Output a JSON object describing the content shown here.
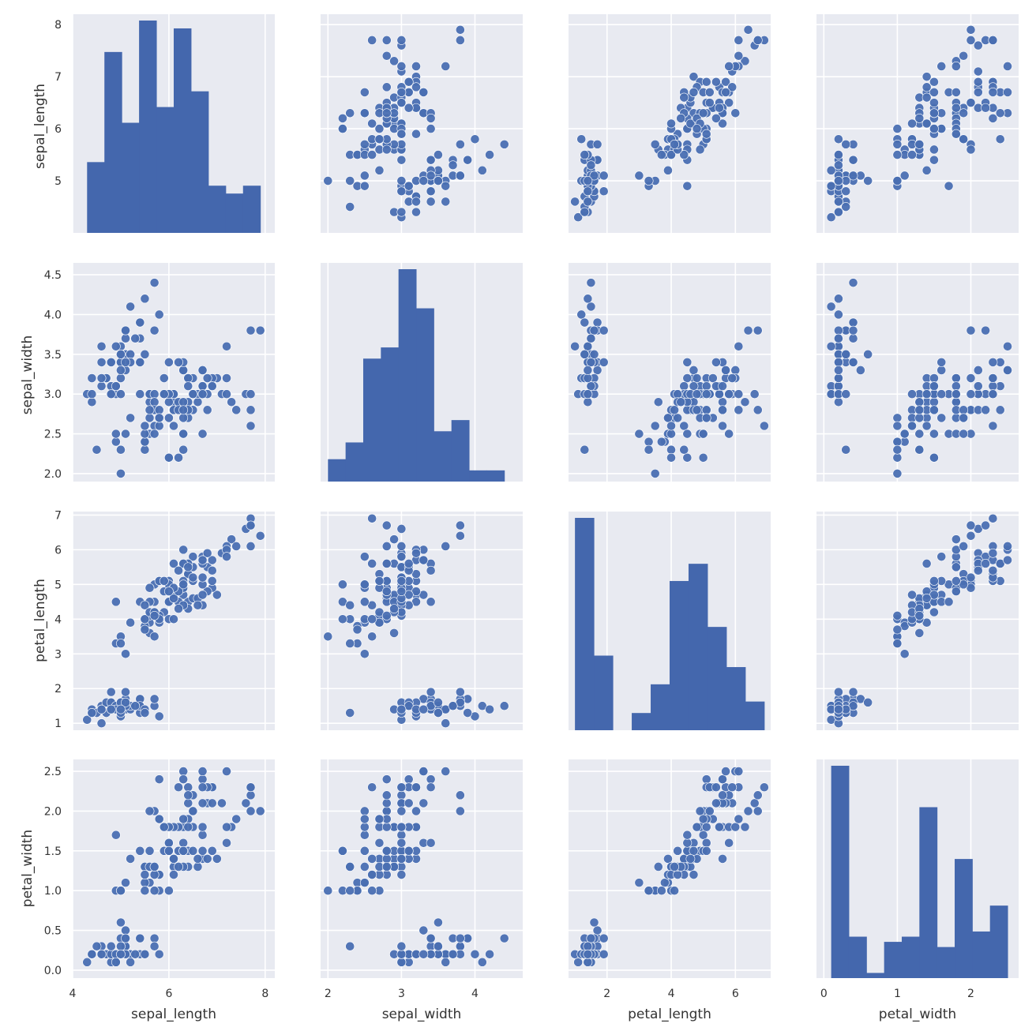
{
  "chart_data": {
    "type": "scatter",
    "title": "",
    "layout": "pairplot",
    "variables": [
      "sepal_length",
      "sepal_width",
      "petal_length",
      "petal_width"
    ],
    "axis_labels": [
      "sepal_length",
      "sepal_width",
      "petal_length",
      "petal_width"
    ],
    "ranges": [
      [
        4.0,
        8.2
      ],
      [
        1.9,
        4.65
      ],
      [
        0.8,
        7.1
      ],
      [
        -0.1,
        2.65
      ]
    ],
    "ticks": [
      [
        {
          "v": 5,
          "label": "5"
        },
        {
          "v": 6,
          "label": "6"
        },
        {
          "v": 7,
          "label": "7"
        },
        {
          "v": 8,
          "label": "8"
        }
      ],
      [
        {
          "v": 2.0,
          "label": "2.0"
        },
        {
          "v": 2.5,
          "label": "2.5"
        },
        {
          "v": 3.0,
          "label": "3.0"
        },
        {
          "v": 3.5,
          "label": "3.5"
        },
        {
          "v": 4.0,
          "label": "4.0"
        },
        {
          "v": 4.5,
          "label": "4.5"
        }
      ],
      [
        {
          "v": 1,
          "label": "1"
        },
        {
          "v": 2,
          "label": "2"
        },
        {
          "v": 3,
          "label": "3"
        },
        {
          "v": 4,
          "label": "4"
        },
        {
          "v": 5,
          "label": "5"
        },
        {
          "v": 6,
          "label": "6"
        },
        {
          "v": 7,
          "label": "7"
        }
      ],
      [
        {
          "v": 0.0,
          "label": "0.0"
        },
        {
          "v": 0.5,
          "label": "0.5"
        },
        {
          "v": 1.0,
          "label": "1.0"
        },
        {
          "v": 1.5,
          "label": "1.5"
        },
        {
          "v": 2.0,
          "label": "2.0"
        },
        {
          "v": 2.5,
          "label": "2.5"
        }
      ]
    ],
    "x_ticks": [
      [
        {
          "v": 4,
          "label": "4"
        },
        {
          "v": 6,
          "label": "6"
        },
        {
          "v": 8,
          "label": "8"
        }
      ],
      [
        {
          "v": 2,
          "label": "2"
        },
        {
          "v": 3,
          "label": "3"
        },
        {
          "v": 4,
          "label": "4"
        }
      ],
      [
        {
          "v": 2,
          "label": "2"
        },
        {
          "v": 4,
          "label": "4"
        },
        {
          "v": 6,
          "label": "6"
        }
      ],
      [
        {
          "v": 0,
          "label": "0"
        },
        {
          "v": 1,
          "label": "1"
        },
        {
          "v": 2,
          "label": "2"
        }
      ]
    ],
    "histograms": [
      {
        "variable": "sepal_length",
        "edges": [
          4.3,
          4.66,
          5.02,
          5.38,
          5.74,
          6.1,
          6.46,
          6.82,
          7.18,
          7.54,
          7.9
        ],
        "counts": [
          9,
          23,
          14,
          27,
          16,
          26,
          18,
          6,
          5,
          6
        ]
      },
      {
        "variable": "sepal_width",
        "edges": [
          2.0,
          2.24,
          2.48,
          2.72,
          2.96,
          3.2,
          3.44,
          3.68,
          3.92,
          4.16,
          4.4
        ],
        "counts": [
          4,
          7,
          22,
          24,
          38,
          31,
          9,
          11,
          2,
          2
        ]
      },
      {
        "variable": "petal_length",
        "edges": [
          1.0,
          1.59,
          2.18,
          2.77,
          3.36,
          3.95,
          4.54,
          5.13,
          5.72,
          6.31,
          6.9
        ],
        "counts": [
          37,
          13,
          0,
          3,
          8,
          26,
          29,
          18,
          11,
          5
        ]
      },
      {
        "variable": "petal_width",
        "edges": [
          0.1,
          0.34,
          0.58,
          0.82,
          1.06,
          1.3,
          1.54,
          1.78,
          2.02,
          2.26,
          2.5
        ],
        "counts": [
          41,
          8,
          1,
          7,
          8,
          33,
          6,
          23,
          9,
          14
        ]
      }
    ],
    "samples": [
      [
        5.1,
        3.5,
        1.4,
        0.2
      ],
      [
        4.9,
        3.0,
        1.4,
        0.2
      ],
      [
        4.7,
        3.2,
        1.3,
        0.2
      ],
      [
        4.6,
        3.1,
        1.5,
        0.2
      ],
      [
        5.0,
        3.6,
        1.4,
        0.2
      ],
      [
        5.4,
        3.9,
        1.7,
        0.4
      ],
      [
        4.6,
        3.4,
        1.4,
        0.3
      ],
      [
        5.0,
        3.4,
        1.5,
        0.2
      ],
      [
        4.4,
        2.9,
        1.4,
        0.2
      ],
      [
        4.9,
        3.1,
        1.5,
        0.1
      ],
      [
        5.4,
        3.7,
        1.5,
        0.2
      ],
      [
        4.8,
        3.4,
        1.6,
        0.2
      ],
      [
        4.8,
        3.0,
        1.4,
        0.1
      ],
      [
        4.3,
        3.0,
        1.1,
        0.1
      ],
      [
        5.8,
        4.0,
        1.2,
        0.2
      ],
      [
        5.7,
        4.4,
        1.5,
        0.4
      ],
      [
        5.4,
        3.9,
        1.3,
        0.4
      ],
      [
        5.1,
        3.5,
        1.4,
        0.3
      ],
      [
        5.7,
        3.8,
        1.7,
        0.3
      ],
      [
        5.1,
        3.8,
        1.5,
        0.3
      ],
      [
        5.4,
        3.4,
        1.7,
        0.2
      ],
      [
        5.1,
        3.7,
        1.5,
        0.4
      ],
      [
        4.6,
        3.6,
        1.0,
        0.2
      ],
      [
        5.1,
        3.3,
        1.7,
        0.5
      ],
      [
        4.8,
        3.4,
        1.9,
        0.2
      ],
      [
        5.0,
        3.0,
        1.6,
        0.2
      ],
      [
        5.0,
        3.4,
        1.6,
        0.4
      ],
      [
        5.2,
        3.5,
        1.5,
        0.2
      ],
      [
        5.2,
        3.4,
        1.4,
        0.2
      ],
      [
        4.7,
        3.2,
        1.6,
        0.2
      ],
      [
        4.8,
        3.1,
        1.6,
        0.2
      ],
      [
        5.4,
        3.4,
        1.5,
        0.4
      ],
      [
        5.2,
        4.1,
        1.5,
        0.1
      ],
      [
        5.5,
        4.2,
        1.4,
        0.2
      ],
      [
        4.9,
        3.1,
        1.5,
        0.2
      ],
      [
        5.0,
        3.2,
        1.2,
        0.2
      ],
      [
        5.5,
        3.5,
        1.3,
        0.2
      ],
      [
        4.9,
        3.6,
        1.4,
        0.1
      ],
      [
        4.4,
        3.0,
        1.3,
        0.2
      ],
      [
        5.1,
        3.4,
        1.5,
        0.2
      ],
      [
        5.0,
        3.5,
        1.3,
        0.3
      ],
      [
        4.5,
        2.3,
        1.3,
        0.3
      ],
      [
        4.4,
        3.2,
        1.3,
        0.2
      ],
      [
        5.0,
        3.5,
        1.6,
        0.6
      ],
      [
        5.1,
        3.8,
        1.9,
        0.4
      ],
      [
        4.8,
        3.0,
        1.4,
        0.3
      ],
      [
        5.1,
        3.8,
        1.6,
        0.2
      ],
      [
        4.6,
        3.2,
        1.4,
        0.2
      ],
      [
        5.3,
        3.7,
        1.5,
        0.2
      ],
      [
        5.0,
        3.3,
        1.4,
        0.2
      ],
      [
        7.0,
        3.2,
        4.7,
        1.4
      ],
      [
        6.4,
        3.2,
        4.5,
        1.5
      ],
      [
        6.9,
        3.1,
        4.9,
        1.5
      ],
      [
        5.5,
        2.3,
        4.0,
        1.3
      ],
      [
        6.5,
        2.8,
        4.6,
        1.5
      ],
      [
        5.7,
        2.8,
        4.5,
        1.3
      ],
      [
        6.3,
        3.3,
        4.7,
        1.6
      ],
      [
        4.9,
        2.4,
        3.3,
        1.0
      ],
      [
        6.6,
        2.9,
        4.6,
        1.3
      ],
      [
        5.2,
        2.7,
        3.9,
        1.4
      ],
      [
        5.0,
        2.0,
        3.5,
        1.0
      ],
      [
        5.9,
        3.0,
        4.2,
        1.5
      ],
      [
        6.0,
        2.2,
        4.0,
        1.0
      ],
      [
        6.1,
        2.9,
        4.7,
        1.4
      ],
      [
        5.6,
        2.9,
        3.6,
        1.3
      ],
      [
        6.7,
        3.1,
        4.4,
        1.4
      ],
      [
        5.6,
        3.0,
        4.5,
        1.5
      ],
      [
        5.8,
        2.7,
        4.1,
        1.0
      ],
      [
        6.2,
        2.2,
        4.5,
        1.5
      ],
      [
        5.6,
        2.5,
        3.9,
        1.1
      ],
      [
        5.9,
        3.2,
        4.8,
        1.8
      ],
      [
        6.1,
        2.8,
        4.0,
        1.3
      ],
      [
        6.3,
        2.5,
        4.9,
        1.5
      ],
      [
        6.1,
        2.8,
        4.7,
        1.2
      ],
      [
        6.4,
        2.9,
        4.3,
        1.3
      ],
      [
        6.6,
        3.0,
        4.4,
        1.4
      ],
      [
        6.8,
        2.8,
        4.8,
        1.4
      ],
      [
        6.7,
        3.0,
        5.0,
        1.7
      ],
      [
        6.0,
        2.9,
        4.5,
        1.5
      ],
      [
        5.7,
        2.6,
        3.5,
        1.0
      ],
      [
        5.5,
        2.4,
        3.8,
        1.1
      ],
      [
        5.5,
        2.4,
        3.7,
        1.0
      ],
      [
        5.8,
        2.7,
        3.9,
        1.2
      ],
      [
        6.0,
        2.7,
        5.1,
        1.6
      ],
      [
        5.4,
        3.0,
        4.5,
        1.5
      ],
      [
        6.0,
        3.4,
        4.5,
        1.6
      ],
      [
        6.7,
        3.1,
        4.7,
        1.5
      ],
      [
        6.3,
        2.3,
        4.4,
        1.3
      ],
      [
        5.6,
        3.0,
        4.1,
        1.3
      ],
      [
        5.5,
        2.5,
        4.0,
        1.3
      ],
      [
        5.5,
        2.6,
        4.4,
        1.2
      ],
      [
        6.1,
        3.0,
        4.6,
        1.4
      ],
      [
        5.8,
        2.6,
        4.0,
        1.2
      ],
      [
        5.0,
        2.3,
        3.3,
        1.0
      ],
      [
        5.6,
        2.7,
        4.2,
        1.3
      ],
      [
        5.7,
        3.0,
        4.2,
        1.2
      ],
      [
        5.7,
        2.9,
        4.2,
        1.3
      ],
      [
        6.2,
        2.9,
        4.3,
        1.3
      ],
      [
        5.1,
        2.5,
        3.0,
        1.1
      ],
      [
        5.7,
        2.8,
        4.1,
        1.3
      ],
      [
        6.3,
        3.3,
        6.0,
        2.5
      ],
      [
        5.8,
        2.7,
        5.1,
        1.9
      ],
      [
        7.1,
        3.0,
        5.9,
        2.1
      ],
      [
        6.3,
        2.9,
        5.6,
        1.8
      ],
      [
        6.5,
        3.0,
        5.8,
        2.2
      ],
      [
        7.6,
        3.0,
        6.6,
        2.1
      ],
      [
        4.9,
        2.5,
        4.5,
        1.7
      ],
      [
        7.3,
        2.9,
        6.3,
        1.8
      ],
      [
        6.7,
        2.5,
        5.8,
        1.8
      ],
      [
        7.2,
        3.6,
        6.1,
        2.5
      ],
      [
        6.5,
        3.2,
        5.1,
        2.0
      ],
      [
        6.4,
        2.7,
        5.3,
        1.9
      ],
      [
        6.8,
        3.0,
        5.5,
        2.1
      ],
      [
        5.7,
        2.5,
        5.0,
        2.0
      ],
      [
        5.8,
        2.8,
        5.1,
        2.4
      ],
      [
        6.4,
        3.2,
        5.3,
        2.3
      ],
      [
        6.5,
        3.0,
        5.5,
        1.8
      ],
      [
        7.7,
        3.8,
        6.7,
        2.2
      ],
      [
        7.7,
        2.6,
        6.9,
        2.3
      ],
      [
        6.0,
        2.2,
        5.0,
        1.5
      ],
      [
        6.9,
        3.2,
        5.7,
        2.3
      ],
      [
        5.6,
        2.8,
        4.9,
        2.0
      ],
      [
        7.7,
        2.8,
        6.7,
        2.0
      ],
      [
        6.3,
        2.7,
        4.9,
        1.8
      ],
      [
        6.7,
        3.3,
        5.7,
        2.1
      ],
      [
        7.2,
        3.2,
        6.0,
        1.8
      ],
      [
        6.2,
        2.8,
        4.8,
        1.8
      ],
      [
        6.1,
        3.0,
        4.9,
        1.8
      ],
      [
        6.4,
        2.8,
        5.6,
        2.1
      ],
      [
        7.2,
        3.0,
        5.8,
        1.6
      ],
      [
        7.4,
        2.8,
        6.1,
        1.9
      ],
      [
        7.9,
        3.8,
        6.4,
        2.0
      ],
      [
        6.4,
        2.8,
        5.6,
        2.2
      ],
      [
        6.3,
        2.8,
        5.1,
        1.5
      ],
      [
        6.1,
        2.6,
        5.6,
        1.4
      ],
      [
        7.7,
        3.0,
        6.1,
        2.3
      ],
      [
        6.3,
        3.4,
        5.6,
        2.4
      ],
      [
        6.4,
        3.1,
        5.5,
        1.8
      ],
      [
        6.0,
        3.0,
        4.8,
        1.8
      ],
      [
        6.9,
        3.1,
        5.4,
        2.1
      ],
      [
        6.7,
        3.1,
        5.6,
        2.4
      ],
      [
        6.9,
        3.1,
        5.1,
        2.3
      ],
      [
        5.8,
        2.7,
        5.1,
        1.9
      ],
      [
        6.8,
        3.2,
        5.9,
        2.3
      ],
      [
        6.7,
        3.3,
        5.7,
        2.5
      ],
      [
        6.7,
        3.0,
        5.2,
        2.3
      ],
      [
        6.3,
        2.5,
        5.0,
        1.9
      ],
      [
        6.5,
        3.0,
        5.2,
        2.0
      ],
      [
        6.2,
        3.4,
        5.4,
        2.3
      ],
      [
        5.9,
        3.0,
        5.1,
        1.8
      ]
    ],
    "colors": {
      "marker": "#4a6fb2",
      "bar": "#4467ad",
      "panel_bg": "#e8eaf1",
      "grid": "#ffffff",
      "text": "#333333"
    }
  }
}
